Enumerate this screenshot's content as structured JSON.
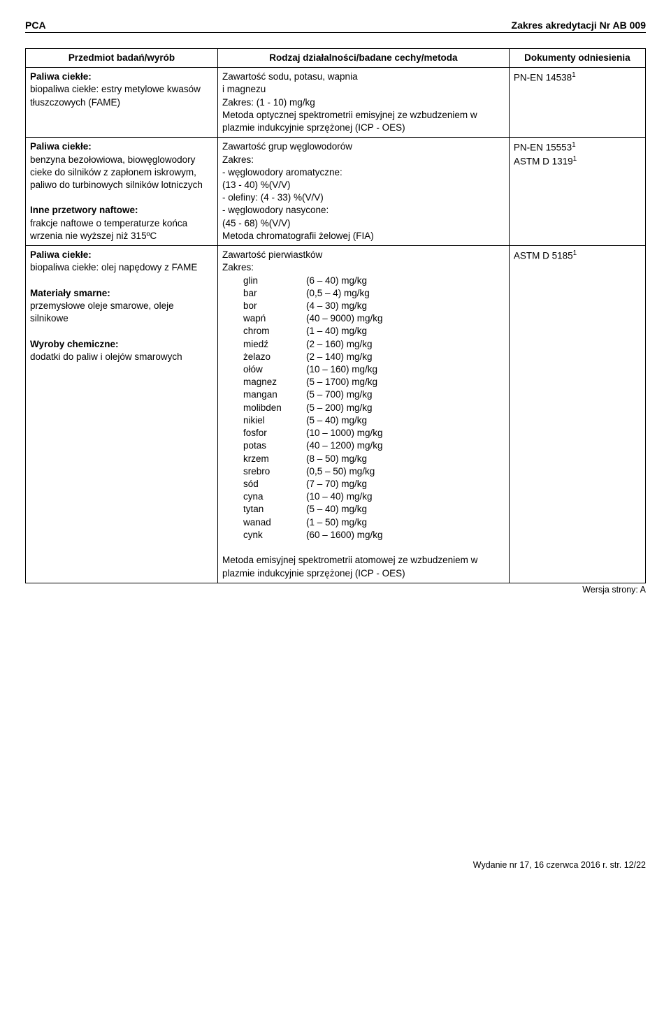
{
  "header": {
    "left": "PCA",
    "right": "Zakres akredytacji Nr AB 009"
  },
  "columns": {
    "c1": "Przedmiot badań/wyrób",
    "c2": "Rodzaj działalności/badane cechy/metoda",
    "c3": "Dokumenty odniesienia"
  },
  "row1": {
    "p_line1": "Paliwa ciekłe:",
    "p_line2": "biopaliwa ciekłe: estry metylowe kwasów tłuszczowych (FAME)",
    "m_line1": "Zawartość sodu, potasu, wapnia",
    "m_line2": "i magnezu",
    "m_line3": "Zakres: (1 - 10) mg/kg",
    "m_line4": "Metoda optycznej spektrometrii emisyjnej ze wzbudzeniem w plazmie indukcyjnie sprzężonej (ICP - OES)",
    "doc": "PN-EN 14538",
    "doc_sup": "1"
  },
  "row2": {
    "p_line1": "Paliwa ciekłe:",
    "p_line2": "benzyna bezołowiowa, biowęglowodory cieke do silników z zapłonem iskrowym,",
    "p_line3": "paliwo do turbinowych silników lotniczych",
    "p_line4": "Inne przetwory naftowe:",
    "p_line5": "frakcje naftowe o temperaturze końca wrzenia nie wyższej niż 315ºC",
    "m_line1": "Zawartość grup węglowodorów",
    "m_line2": "Zakres:",
    "m_line3": "- węglowodory aromatyczne:",
    "m_line4": "  (13 - 40) %(V/V)",
    "m_line5": "- olefiny: (4 - 33) %(V/V)",
    "m_line6": "- węglowodory nasycone:",
    "m_line7": "  (45 - 68) %(V/V)",
    "m_line8": "Metoda chromatografii żelowej (FIA)",
    "doc1": "PN-EN 15553",
    "doc1_sup": "1",
    "doc2": "ASTM D 1319",
    "doc2_sup": "1"
  },
  "row3": {
    "p_line1": "Paliwa ciekłe:",
    "p_line2": "biopaliwa ciekłe: olej napędowy z FAME",
    "p_line3": "Materiały smarne:",
    "p_line4": "przemysłowe oleje smarowe, oleje silnikowe",
    "p_line5": "Wyroby chemiczne:",
    "p_line6": "dodatki do paliw i olejów smarowych",
    "m_line1": "Zawartość pierwiastków",
    "m_line2": "Zakres:",
    "elements": [
      [
        "glin",
        "(6 – 40) mg/kg"
      ],
      [
        "bar",
        "(0,5 – 4) mg/kg"
      ],
      [
        "bor",
        "(4 – 30) mg/kg"
      ],
      [
        "wapń",
        "(40 – 9000) mg/kg"
      ],
      [
        "chrom",
        "(1 – 40) mg/kg"
      ],
      [
        "miedź",
        "(2 – 160) mg/kg"
      ],
      [
        "żelazo",
        "(2 – 140) mg/kg"
      ],
      [
        "ołów",
        "(10 – 160) mg/kg"
      ],
      [
        "magnez",
        "(5 – 1700) mg/kg"
      ],
      [
        "mangan",
        "(5 – 700) mg/kg"
      ],
      [
        "molibden",
        "(5 – 200) mg/kg"
      ],
      [
        "nikiel",
        "(5 – 40) mg/kg"
      ],
      [
        "fosfor",
        "(10 – 1000) mg/kg"
      ],
      [
        "potas",
        "(40 – 1200) mg/kg"
      ],
      [
        "krzem",
        "(8 – 50) mg/kg"
      ],
      [
        "srebro",
        "(0,5 – 50) mg/kg"
      ],
      [
        "sód",
        "(7 – 70) mg/kg"
      ],
      [
        "cyna",
        "(10 – 40) mg/kg"
      ],
      [
        "tytan",
        "(5 – 40) mg/kg"
      ],
      [
        "wanad",
        "(1 – 50) mg/kg"
      ],
      [
        "cynk",
        "(60 – 1600) mg/kg"
      ]
    ],
    "m_tail": "Metoda emisyjnej spektrometrii atomowej ze wzbudzeniem w plazmie indukcyjnie sprzężonej (ICP - OES)",
    "doc": "ASTM D 5185",
    "doc_sup": "1"
  },
  "version": "Wersja strony: A",
  "footer": "Wydanie nr 17, 16 czerwca 2016 r.   str. 12/22"
}
